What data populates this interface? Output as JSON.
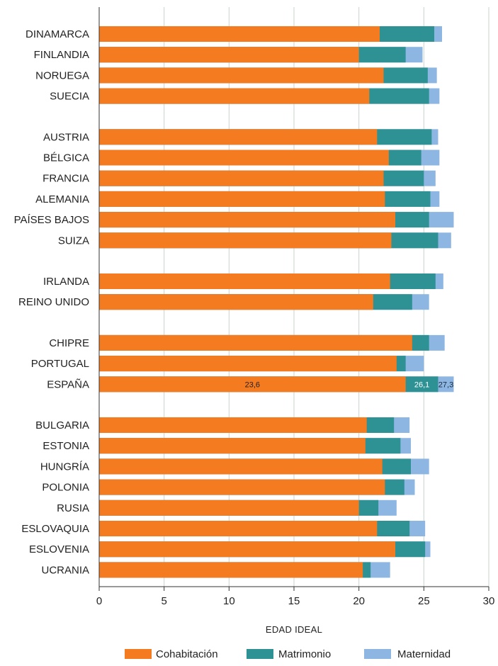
{
  "chart_data": {
    "type": "bar",
    "orientation": "horizontal",
    "stacking": "cumulative-overlay",
    "xlabel": "EDAD IDEAL",
    "xlim": [
      0,
      30
    ],
    "xticks": [
      0,
      5,
      10,
      15,
      20,
      25,
      30
    ],
    "grid": true,
    "legend_position": "bottom",
    "series": [
      {
        "name": "Cohabitación",
        "color": "#F47B20"
      },
      {
        "name": "Matrimonio",
        "color": "#2E9294"
      },
      {
        "name": "Maternidad",
        "color": "#8DB6E2"
      }
    ],
    "groups": [
      [
        {
          "category": "DINAMARCA",
          "cohabitacion": 21.6,
          "matrimonio": 25.8,
          "maternidad": 26.4
        },
        {
          "category": "FINLANDIA",
          "cohabitacion": 20.0,
          "matrimonio": 23.6,
          "maternidad": 24.9
        },
        {
          "category": "NORUEGA",
          "cohabitacion": 21.9,
          "matrimonio": 25.3,
          "maternidad": 26.0
        },
        {
          "category": "SUECIA",
          "cohabitacion": 20.8,
          "matrimonio": 25.4,
          "maternidad": 26.2
        }
      ],
      [
        {
          "category": "AUSTRIA",
          "cohabitacion": 21.4,
          "matrimonio": 25.6,
          "maternidad": 26.1
        },
        {
          "category": "BÉLGICA",
          "cohabitacion": 22.3,
          "matrimonio": 24.8,
          "maternidad": 26.2
        },
        {
          "category": "FRANCIA",
          "cohabitacion": 21.9,
          "matrimonio": 25.0,
          "maternidad": 25.9
        },
        {
          "category": "ALEMANIA",
          "cohabitacion": 22.0,
          "matrimonio": 25.5,
          "maternidad": 26.2
        },
        {
          "category": "PAÍSES BAJOS",
          "cohabitacion": 22.8,
          "matrimonio": 25.4,
          "maternidad": 27.3
        },
        {
          "category": "SUIZA",
          "cohabitacion": 22.5,
          "matrimonio": 26.1,
          "maternidad": 27.1
        }
      ],
      [
        {
          "category": "IRLANDA",
          "cohabitacion": 22.4,
          "matrimonio": 25.9,
          "maternidad": 26.5
        },
        {
          "category": "REINO UNIDO",
          "cohabitacion": 21.1,
          "matrimonio": 24.1,
          "maternidad": 25.4
        }
      ],
      [
        {
          "category": "CHIPRE",
          "cohabitacion": 24.1,
          "matrimonio": 25.4,
          "maternidad": 26.6
        },
        {
          "category": "PORTUGAL",
          "cohabitacion": 22.9,
          "matrimonio": 23.6,
          "maternidad": 25.0
        },
        {
          "category": "ESPAÑA",
          "cohabitacion": 23.6,
          "matrimonio": 26.1,
          "maternidad": 27.3,
          "labels": [
            "23,6",
            "26,1",
            "27,3"
          ]
        }
      ],
      [
        {
          "category": "BULGARIA",
          "cohabitacion": 20.6,
          "matrimonio": 22.7,
          "maternidad": 23.9
        },
        {
          "category": "ESTONIA",
          "cohabitacion": 20.5,
          "matrimonio": 23.2,
          "maternidad": 24.0
        },
        {
          "category": "HUNGRÍA",
          "cohabitacion": 21.8,
          "matrimonio": 24.0,
          "maternidad": 25.4
        },
        {
          "category": "POLONIA",
          "cohabitacion": 22.0,
          "matrimonio": 23.5,
          "maternidad": 24.3
        },
        {
          "category": "RUSIA",
          "cohabitacion": 20.0,
          "matrimonio": 21.5,
          "maternidad": 22.9
        },
        {
          "category": "ESLOVAQUIA",
          "cohabitacion": 21.4,
          "matrimonio": 23.9,
          "maternidad": 25.1
        },
        {
          "category": "ESLOVENIA",
          "cohabitacion": 22.8,
          "matrimonio": 25.1,
          "maternidad": 25.5
        },
        {
          "category": "UCRANIA",
          "cohabitacion": 20.3,
          "matrimonio": 20.9,
          "maternidad": 22.4
        }
      ]
    ]
  }
}
